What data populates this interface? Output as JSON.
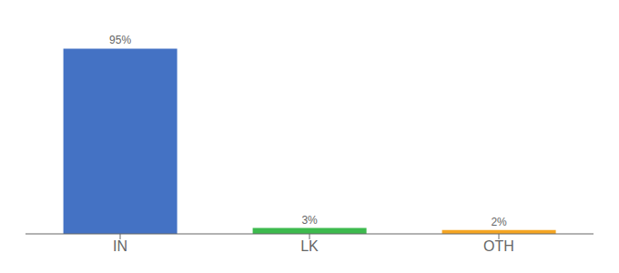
{
  "chart_data": {
    "type": "bar",
    "categories": [
      "IN",
      "LK",
      "OTH"
    ],
    "values": [
      95,
      3,
      2
    ],
    "value_labels": [
      "95%",
      "3%",
      "2%"
    ],
    "colors": [
      "#4472c4",
      "#3dba4e",
      "#f5a623"
    ],
    "ylim": [
      0,
      105
    ],
    "data_labels": true,
    "tick_labels": "x",
    "grid": false
  }
}
